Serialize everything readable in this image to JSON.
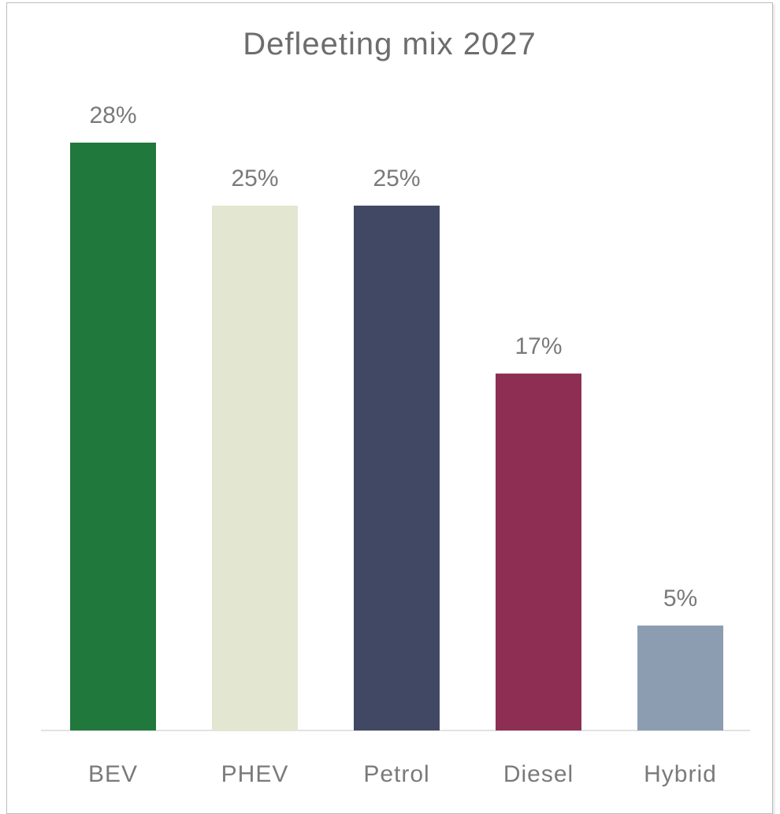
{
  "chart_data": {
    "type": "bar",
    "title": "Defleeting mix 2027",
    "categories": [
      "BEV",
      "PHEV",
      "Petrol",
      "Diesel",
      "Hybrid"
    ],
    "values": [
      28,
      25,
      25,
      17,
      5
    ],
    "value_labels": [
      "28%",
      "25%",
      "25%",
      "17%",
      "5%"
    ],
    "colors": [
      "#20783c",
      "#e3e7d2",
      "#414864",
      "#8e2e52",
      "#8c9db2"
    ],
    "xlabel": "",
    "ylabel": "",
    "ylim": [
      0,
      28
    ],
    "grid": false,
    "legend": "none"
  }
}
